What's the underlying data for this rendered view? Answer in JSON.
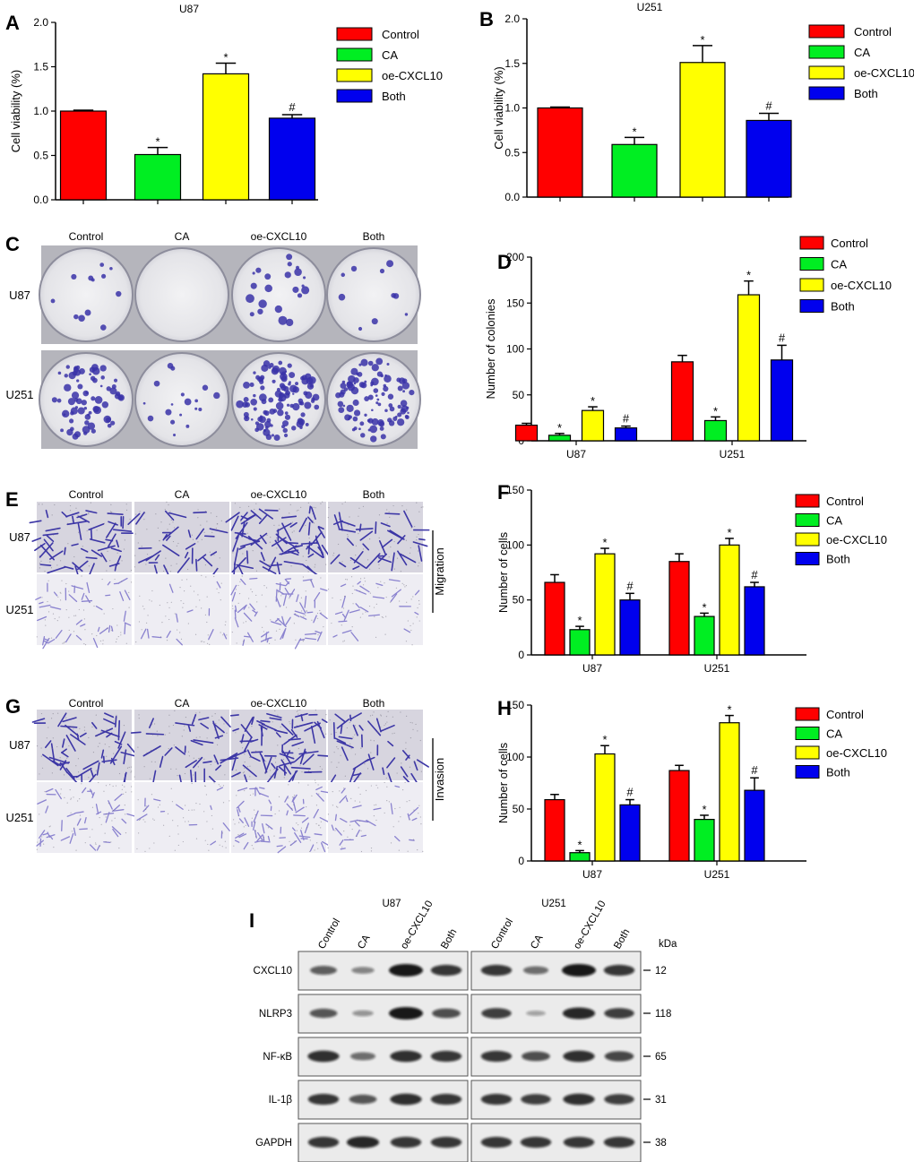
{
  "figure": {
    "panel_letters": {
      "A": "A",
      "B": "B",
      "C": "C",
      "D": "D",
      "E": "E",
      "F": "F",
      "G": "G",
      "H": "H",
      "I": "I"
    }
  },
  "groups": [
    "Control",
    "CA",
    "oe-CXCL10",
    "Both"
  ],
  "colors": {
    "Control": "#ff0000",
    "CA": "#00ee22",
    "oe-CXCL10": "#ffff00",
    "Both": "#0000ee"
  },
  "cell_lines": [
    "U87",
    "U251"
  ],
  "photo_panels": {
    "C": {
      "columns": [
        "Control",
        "CA",
        "oe-CXCL10",
        "Both"
      ],
      "rows": [
        "U87",
        "U251"
      ]
    },
    "E": {
      "columns": [
        "Control",
        "CA",
        "oe-CXCL10",
        "Both"
      ],
      "rows": [
        "U87",
        "U251"
      ],
      "side_label": "Migration"
    },
    "G": {
      "columns": [
        "Control",
        "CA",
        "oe-CXCL10",
        "Both"
      ],
      "rows": [
        "U87",
        "U251"
      ],
      "side_label": "Invasion"
    }
  },
  "western": {
    "cell_line_headers": [
      "U87",
      "U251"
    ],
    "lanes": [
      "Control",
      "CA",
      "oe-CXCL10",
      "Both"
    ],
    "kda_label": "kDa",
    "proteins": [
      {
        "name": "CXCL10",
        "kda": "12",
        "intensity": [
          0.55,
          0.3,
          1.0,
          0.8
        ],
        "intensity2": [
          0.8,
          0.45,
          1.0,
          0.8
        ]
      },
      {
        "name": "NLRP3",
        "kda": "118",
        "intensity": [
          0.6,
          0.2,
          1.0,
          0.65
        ],
        "intensity2": [
          0.75,
          0.1,
          0.9,
          0.75
        ]
      },
      {
        "name": "NF-κB",
        "kda": "65",
        "intensity": [
          0.85,
          0.45,
          0.85,
          0.8
        ],
        "intensity2": [
          0.8,
          0.65,
          0.85,
          0.7
        ]
      },
      {
        "name": "IL-1β",
        "kda": "31",
        "intensity": [
          0.8,
          0.6,
          0.85,
          0.8
        ],
        "intensity2": [
          0.8,
          0.75,
          0.85,
          0.75
        ]
      },
      {
        "name": "GAPDH",
        "kda": "38",
        "intensity": [
          0.8,
          0.9,
          0.8,
          0.8
        ],
        "intensity2": [
          0.8,
          0.8,
          0.8,
          0.8
        ]
      }
    ]
  },
  "chart_data": [
    {
      "panel": "A",
      "type": "bar",
      "title": "U87",
      "ylabel": "Cell viability (%)",
      "ylim": [
        0,
        2.0
      ],
      "yticks": [
        "0.0",
        "0.5",
        "1.0",
        "1.5",
        "2.0"
      ],
      "categories": [
        "Control",
        "CA",
        "oe-CXCL10",
        "Both"
      ],
      "values": [
        1.0,
        0.51,
        1.42,
        0.92
      ],
      "errors": [
        0.01,
        0.08,
        0.12,
        0.04
      ],
      "marks": [
        "",
        "*",
        "*",
        "#"
      ],
      "legend": "top-right"
    },
    {
      "panel": "B",
      "type": "bar",
      "title": "U251",
      "ylabel": "Cell viability (%)",
      "ylim": [
        0,
        2.0
      ],
      "yticks": [
        "0.0",
        "0.5",
        "1.0",
        "1.5",
        "2.0"
      ],
      "categories": [
        "Control",
        "CA",
        "oe-CXCL10",
        "Both"
      ],
      "values": [
        1.0,
        0.59,
        1.51,
        0.86
      ],
      "errors": [
        0.01,
        0.08,
        0.19,
        0.08
      ],
      "marks": [
        "",
        "*",
        "*",
        "#"
      ],
      "legend": "top-right"
    },
    {
      "panel": "D",
      "type": "bar",
      "ylabel": "Number of colonies",
      "ylim": [
        0,
        200
      ],
      "yticks": [
        "0",
        "50",
        "100",
        "150",
        "200"
      ],
      "categories": [
        "U87",
        "U251"
      ],
      "series": [
        {
          "name": "Control",
          "values": [
            17,
            86
          ],
          "errors": [
            2,
            7
          ],
          "marks": [
            "",
            ""
          ]
        },
        {
          "name": "CA",
          "values": [
            6,
            22
          ],
          "errors": [
            2,
            4
          ],
          "marks": [
            "*",
            "*"
          ]
        },
        {
          "name": "oe-CXCL10",
          "values": [
            33,
            159
          ],
          "errors": [
            4,
            15
          ],
          "marks": [
            "*",
            "*"
          ]
        },
        {
          "name": "Both",
          "values": [
            14,
            88
          ],
          "errors": [
            2,
            16
          ],
          "marks": [
            "#",
            "#"
          ]
        }
      ],
      "legend": "top-right"
    },
    {
      "panel": "F",
      "type": "bar",
      "ylabel": "Number of cells",
      "ylim": [
        0,
        150
      ],
      "yticks": [
        "0",
        "50",
        "100",
        "150"
      ],
      "categories": [
        "U87",
        "U251"
      ],
      "series": [
        {
          "name": "Control",
          "values": [
            66,
            85
          ],
          "errors": [
            7,
            7
          ],
          "marks": [
            "",
            ""
          ]
        },
        {
          "name": "CA",
          "values": [
            23,
            35
          ],
          "errors": [
            3,
            3
          ],
          "marks": [
            "*",
            "*"
          ]
        },
        {
          "name": "oe-CXCL10",
          "values": [
            92,
            100
          ],
          "errors": [
            5,
            6
          ],
          "marks": [
            "*",
            "*"
          ]
        },
        {
          "name": "Both",
          "values": [
            50,
            62
          ],
          "errors": [
            6,
            4
          ],
          "marks": [
            "#",
            "#"
          ]
        }
      ],
      "legend": "top-right"
    },
    {
      "panel": "H",
      "type": "bar",
      "ylabel": "Number of cells",
      "ylim": [
        0,
        150
      ],
      "yticks": [
        "0",
        "50",
        "100",
        "150"
      ],
      "categories": [
        "U87",
        "U251"
      ],
      "series": [
        {
          "name": "Control",
          "values": [
            59,
            87
          ],
          "errors": [
            5,
            5
          ],
          "marks": [
            "",
            ""
          ]
        },
        {
          "name": "CA",
          "values": [
            8,
            40
          ],
          "errors": [
            2,
            4
          ],
          "marks": [
            "*",
            "*"
          ]
        },
        {
          "name": "oe-CXCL10",
          "values": [
            103,
            133
          ],
          "errors": [
            8,
            7
          ],
          "marks": [
            "*",
            "*"
          ]
        },
        {
          "name": "Both",
          "values": [
            54,
            68
          ],
          "errors": [
            5,
            12
          ],
          "marks": [
            "#",
            "#"
          ]
        }
      ],
      "legend": "top-right"
    }
  ]
}
